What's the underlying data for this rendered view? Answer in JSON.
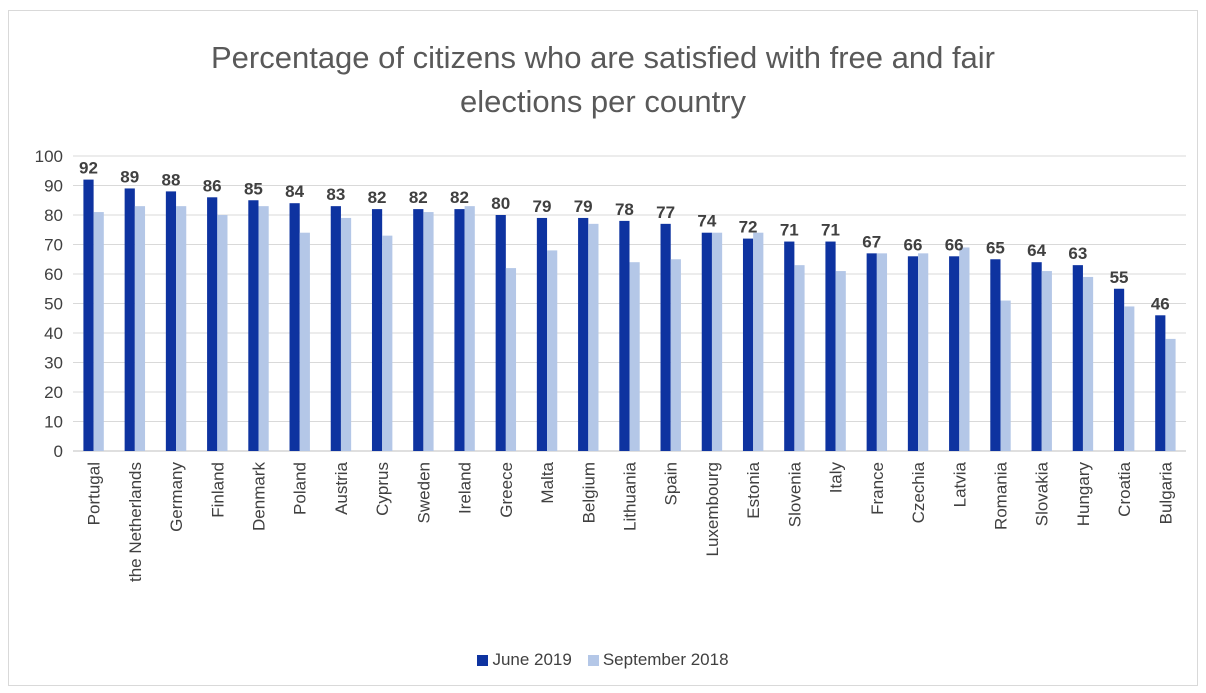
{
  "chart_data": {
    "type": "bar",
    "title": "Percentage of citizens who are satisfied with free and fair elections per country",
    "title_lines": [
      "Percentage of citizens who are satisfied with free and fair",
      "elections per country"
    ],
    "categories": [
      "Portugal",
      "the Netherlands",
      "Germany",
      "Finland",
      "Denmark",
      "Poland",
      "Austria",
      "Cyprus",
      "Sweden",
      "Ireland",
      "Greece",
      "Malta",
      "Belgium",
      "Lithuania",
      "Spain",
      "Luxembourg",
      "Estonia",
      "Slovenia",
      "Italy",
      "France",
      "Czechia",
      "Latvia",
      "Romania",
      "Slovakia",
      "Hungary",
      "Croatia",
      "Bulgaria"
    ],
    "series": [
      {
        "name": "June 2019",
        "color": "#0e33a0",
        "values": [
          92,
          89,
          88,
          86,
          85,
          84,
          83,
          82,
          82,
          82,
          80,
          79,
          79,
          78,
          77,
          74,
          72,
          71,
          71,
          67,
          66,
          66,
          65,
          64,
          63,
          55,
          46
        ],
        "data_labels": true
      },
      {
        "name": "September 2018",
        "color": "#b4c7e7",
        "values": [
          81,
          83,
          83,
          80,
          83,
          74,
          79,
          73,
          81,
          83,
          62,
          68,
          77,
          64,
          65,
          74,
          74,
          63,
          61,
          67,
          67,
          69,
          51,
          61,
          59,
          49,
          38
        ],
        "data_labels": false
      }
    ],
    "ylim": [
      0,
      100
    ],
    "yticks": [
      0,
      10,
      20,
      30,
      40,
      50,
      60,
      70,
      80,
      90,
      100
    ],
    "grid": true,
    "legend": "bottom",
    "xlabel": "",
    "ylabel": ""
  }
}
